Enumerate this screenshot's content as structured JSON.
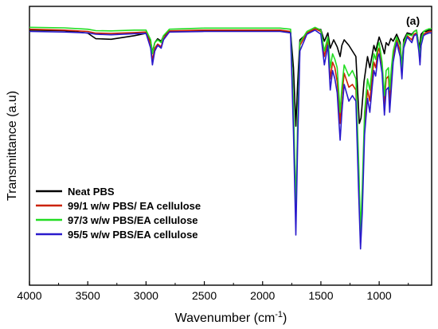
{
  "chart_data": {
    "type": "line",
    "panel_label": "(a)",
    "xlabel_main": "Wavenumber (cm",
    "xlabel_sup": "-1",
    "xlabel_end": ")",
    "ylabel": "Transmittance (a.u)",
    "xlim": [
      4000,
      550
    ],
    "ylim": [
      0,
      100
    ],
    "x_ticks": [
      4000,
      3500,
      3000,
      2500,
      2000,
      1500,
      1000
    ],
    "x_tick_labels": [
      "4000",
      "3500",
      "3000",
      "2500",
      "2000",
      "1500",
      "1000"
    ],
    "legend_position": "bottom-left",
    "series": [
      {
        "name": "Neat PBS",
        "color": "#000000",
        "points": [
          [
            4000,
            91.5
          ],
          [
            3700,
            91.3
          ],
          [
            3500,
            90.4
          ],
          [
            3430,
            88.4
          ],
          [
            3300,
            88.2
          ],
          [
            3100,
            89.5
          ],
          [
            3000,
            90.3
          ],
          [
            2960,
            87.5
          ],
          [
            2945,
            83.5
          ],
          [
            2925,
            87
          ],
          [
            2900,
            88.4
          ],
          [
            2870,
            87.5
          ],
          [
            2850,
            89.4
          ],
          [
            2800,
            91
          ],
          [
            2500,
            91.3
          ],
          [
            2000,
            91.3
          ],
          [
            1850,
            91.3
          ],
          [
            1760,
            90.8
          ],
          [
            1735,
            78
          ],
          [
            1715,
            57
          ],
          [
            1700,
            72
          ],
          [
            1680,
            88
          ],
          [
            1620,
            90.2
          ],
          [
            1550,
            92
          ],
          [
            1500,
            91.7
          ],
          [
            1470,
            87.5
          ],
          [
            1440,
            90.5
          ],
          [
            1420,
            85
          ],
          [
            1390,
            88
          ],
          [
            1360,
            85.5
          ],
          [
            1335,
            82
          ],
          [
            1320,
            86
          ],
          [
            1300,
            88
          ],
          [
            1260,
            86
          ],
          [
            1230,
            84
          ],
          [
            1200,
            82
          ],
          [
            1170,
            58
          ],
          [
            1155,
            60
          ],
          [
            1130,
            73
          ],
          [
            1100,
            82
          ],
          [
            1080,
            78
          ],
          [
            1045,
            86
          ],
          [
            1030,
            84
          ],
          [
            1000,
            89
          ],
          [
            975,
            86
          ],
          [
            955,
            83
          ],
          [
            940,
            87
          ],
          [
            920,
            86
          ],
          [
            900,
            88.5
          ],
          [
            880,
            87.5
          ],
          [
            850,
            90
          ],
          [
            820,
            87
          ],
          [
            805,
            78
          ],
          [
            790,
            88
          ],
          [
            760,
            90.5
          ],
          [
            720,
            90
          ],
          [
            700,
            91
          ],
          [
            680,
            91.5
          ],
          [
            655,
            85
          ],
          [
            640,
            90
          ],
          [
            620,
            91
          ],
          [
            600,
            91
          ],
          [
            570,
            91.5
          ],
          [
            550,
            91.5
          ]
        ]
      },
      {
        "name": "99/1 w/w PBS/ EA cellulose",
        "color": "#cc2200",
        "points": [
          [
            4000,
            91.8
          ],
          [
            3700,
            91.5
          ],
          [
            3500,
            91
          ],
          [
            3430,
            90.4
          ],
          [
            3300,
            90.3
          ],
          [
            3100,
            90.6
          ],
          [
            3000,
            90.8
          ],
          [
            2960,
            86.5
          ],
          [
            2945,
            80.5
          ],
          [
            2925,
            85
          ],
          [
            2900,
            86.5
          ],
          [
            2870,
            85.5
          ],
          [
            2850,
            88.5
          ],
          [
            2800,
            91.2
          ],
          [
            2500,
            91.5
          ],
          [
            2000,
            91.5
          ],
          [
            1850,
            91.5
          ],
          [
            1760,
            91
          ],
          [
            1735,
            60
          ],
          [
            1715,
            26
          ],
          [
            1700,
            55
          ],
          [
            1680,
            86
          ],
          [
            1620,
            90.5
          ],
          [
            1550,
            92
          ],
          [
            1500,
            91
          ],
          [
            1470,
            82
          ],
          [
            1440,
            88
          ],
          [
            1420,
            74
          ],
          [
            1400,
            80
          ],
          [
            1380,
            78
          ],
          [
            1360,
            73
          ],
          [
            1335,
            58
          ],
          [
            1320,
            68
          ],
          [
            1300,
            76
          ],
          [
            1260,
            71
          ],
          [
            1230,
            72
          ],
          [
            1200,
            70
          ],
          [
            1175,
            38
          ],
          [
            1160,
            15
          ],
          [
            1145,
            30
          ],
          [
            1125,
            58
          ],
          [
            1100,
            70
          ],
          [
            1080,
            66
          ],
          [
            1060,
            75
          ],
          [
            1045,
            80
          ],
          [
            1030,
            78
          ],
          [
            1010,
            84
          ],
          [
            1000,
            85
          ],
          [
            975,
            78
          ],
          [
            955,
            65
          ],
          [
            940,
            74
          ],
          [
            920,
            75
          ],
          [
            910,
            66
          ],
          [
            895,
            75
          ],
          [
            880,
            82
          ],
          [
            850,
            88
          ],
          [
            820,
            84
          ],
          [
            805,
            76
          ],
          [
            790,
            86
          ],
          [
            760,
            89.5
          ],
          [
            720,
            88
          ],
          [
            700,
            90
          ],
          [
            680,
            90.5
          ],
          [
            660,
            85
          ],
          [
            650,
            80
          ],
          [
            640,
            87
          ],
          [
            620,
            90
          ],
          [
            600,
            90.5
          ],
          [
            570,
            91
          ],
          [
            550,
            91
          ]
        ]
      },
      {
        "name": "97/3 w/w PBS/EA cellulose",
        "color": "#22dd22",
        "points": [
          [
            4000,
            92.5
          ],
          [
            3700,
            92.3
          ],
          [
            3500,
            91.8
          ],
          [
            3430,
            91.3
          ],
          [
            3300,
            91.2
          ],
          [
            3100,
            91.5
          ],
          [
            3000,
            91.5
          ],
          [
            2960,
            88
          ],
          [
            2945,
            83
          ],
          [
            2925,
            87
          ],
          [
            2900,
            88
          ],
          [
            2870,
            87
          ],
          [
            2850,
            89.5
          ],
          [
            2800,
            91.8
          ],
          [
            2500,
            92.2
          ],
          [
            2000,
            92.2
          ],
          [
            1850,
            92.2
          ],
          [
            1760,
            91.8
          ],
          [
            1735,
            65
          ],
          [
            1715,
            28
          ],
          [
            1700,
            58
          ],
          [
            1680,
            87
          ],
          [
            1620,
            91
          ],
          [
            1550,
            92.5
          ],
          [
            1500,
            91.5
          ],
          [
            1470,
            84
          ],
          [
            1440,
            89
          ],
          [
            1420,
            78
          ],
          [
            1400,
            83
          ],
          [
            1380,
            81
          ],
          [
            1360,
            78
          ],
          [
            1335,
            62
          ],
          [
            1320,
            71
          ],
          [
            1300,
            79
          ],
          [
            1260,
            75
          ],
          [
            1230,
            77
          ],
          [
            1200,
            74
          ],
          [
            1175,
            43
          ],
          [
            1160,
            19
          ],
          [
            1145,
            35
          ],
          [
            1125,
            62
          ],
          [
            1100,
            74
          ],
          [
            1080,
            70
          ],
          [
            1060,
            78
          ],
          [
            1045,
            83
          ],
          [
            1030,
            81
          ],
          [
            1010,
            86
          ],
          [
            1000,
            87
          ],
          [
            975,
            80
          ],
          [
            955,
            68
          ],
          [
            940,
            77
          ],
          [
            920,
            78
          ],
          [
            910,
            70
          ],
          [
            895,
            78
          ],
          [
            880,
            84
          ],
          [
            850,
            89
          ],
          [
            820,
            86
          ],
          [
            805,
            78
          ],
          [
            790,
            87
          ],
          [
            760,
            90
          ],
          [
            720,
            89.5
          ],
          [
            700,
            91
          ],
          [
            680,
            91.5
          ],
          [
            660,
            86
          ],
          [
            650,
            82
          ],
          [
            640,
            88
          ],
          [
            620,
            91
          ],
          [
            600,
            91.5
          ],
          [
            570,
            92
          ],
          [
            550,
            92
          ]
        ]
      },
      {
        "name": "95/5 w/w PBS/EA cellulose",
        "color": "#2a1acc",
        "points": [
          [
            4000,
            91
          ],
          [
            3700,
            90.8
          ],
          [
            3500,
            90.5
          ],
          [
            3430,
            90
          ],
          [
            3300,
            89.8
          ],
          [
            3100,
            90.2
          ],
          [
            3000,
            90.3
          ],
          [
            2960,
            85
          ],
          [
            2945,
            79
          ],
          [
            2925,
            84
          ],
          [
            2900,
            86
          ],
          [
            2870,
            85
          ],
          [
            2850,
            88
          ],
          [
            2800,
            90.8
          ],
          [
            2500,
            91
          ],
          [
            2000,
            91
          ],
          [
            1850,
            91
          ],
          [
            1760,
            90.5
          ],
          [
            1735,
            55
          ],
          [
            1715,
            18
          ],
          [
            1700,
            50
          ],
          [
            1680,
            84
          ],
          [
            1620,
            90
          ],
          [
            1550,
            91.5
          ],
          [
            1500,
            90
          ],
          [
            1470,
            79
          ],
          [
            1440,
            86
          ],
          [
            1420,
            70
          ],
          [
            1400,
            77
          ],
          [
            1380,
            74
          ],
          [
            1360,
            69
          ],
          [
            1335,
            52
          ],
          [
            1320,
            62
          ],
          [
            1300,
            72
          ],
          [
            1260,
            66
          ],
          [
            1230,
            68
          ],
          [
            1200,
            66
          ],
          [
            1175,
            32
          ],
          [
            1160,
            13
          ],
          [
            1145,
            26
          ],
          [
            1125,
            54
          ],
          [
            1100,
            67
          ],
          [
            1080,
            62
          ],
          [
            1060,
            71
          ],
          [
            1045,
            77
          ],
          [
            1030,
            75
          ],
          [
            1010,
            82
          ],
          [
            1000,
            83
          ],
          [
            975,
            76
          ],
          [
            955,
            61
          ],
          [
            940,
            70
          ],
          [
            920,
            71
          ],
          [
            910,
            62
          ],
          [
            895,
            71
          ],
          [
            880,
            80
          ],
          [
            850,
            87
          ],
          [
            820,
            82
          ],
          [
            805,
            74
          ],
          [
            790,
            85
          ],
          [
            760,
            89
          ],
          [
            720,
            87
          ],
          [
            700,
            89.5
          ],
          [
            680,
            90
          ],
          [
            660,
            84
          ],
          [
            650,
            79
          ],
          [
            640,
            86
          ],
          [
            620,
            89.5
          ],
          [
            600,
            90
          ],
          [
            570,
            90.5
          ],
          [
            550,
            90.5
          ]
        ]
      }
    ]
  }
}
